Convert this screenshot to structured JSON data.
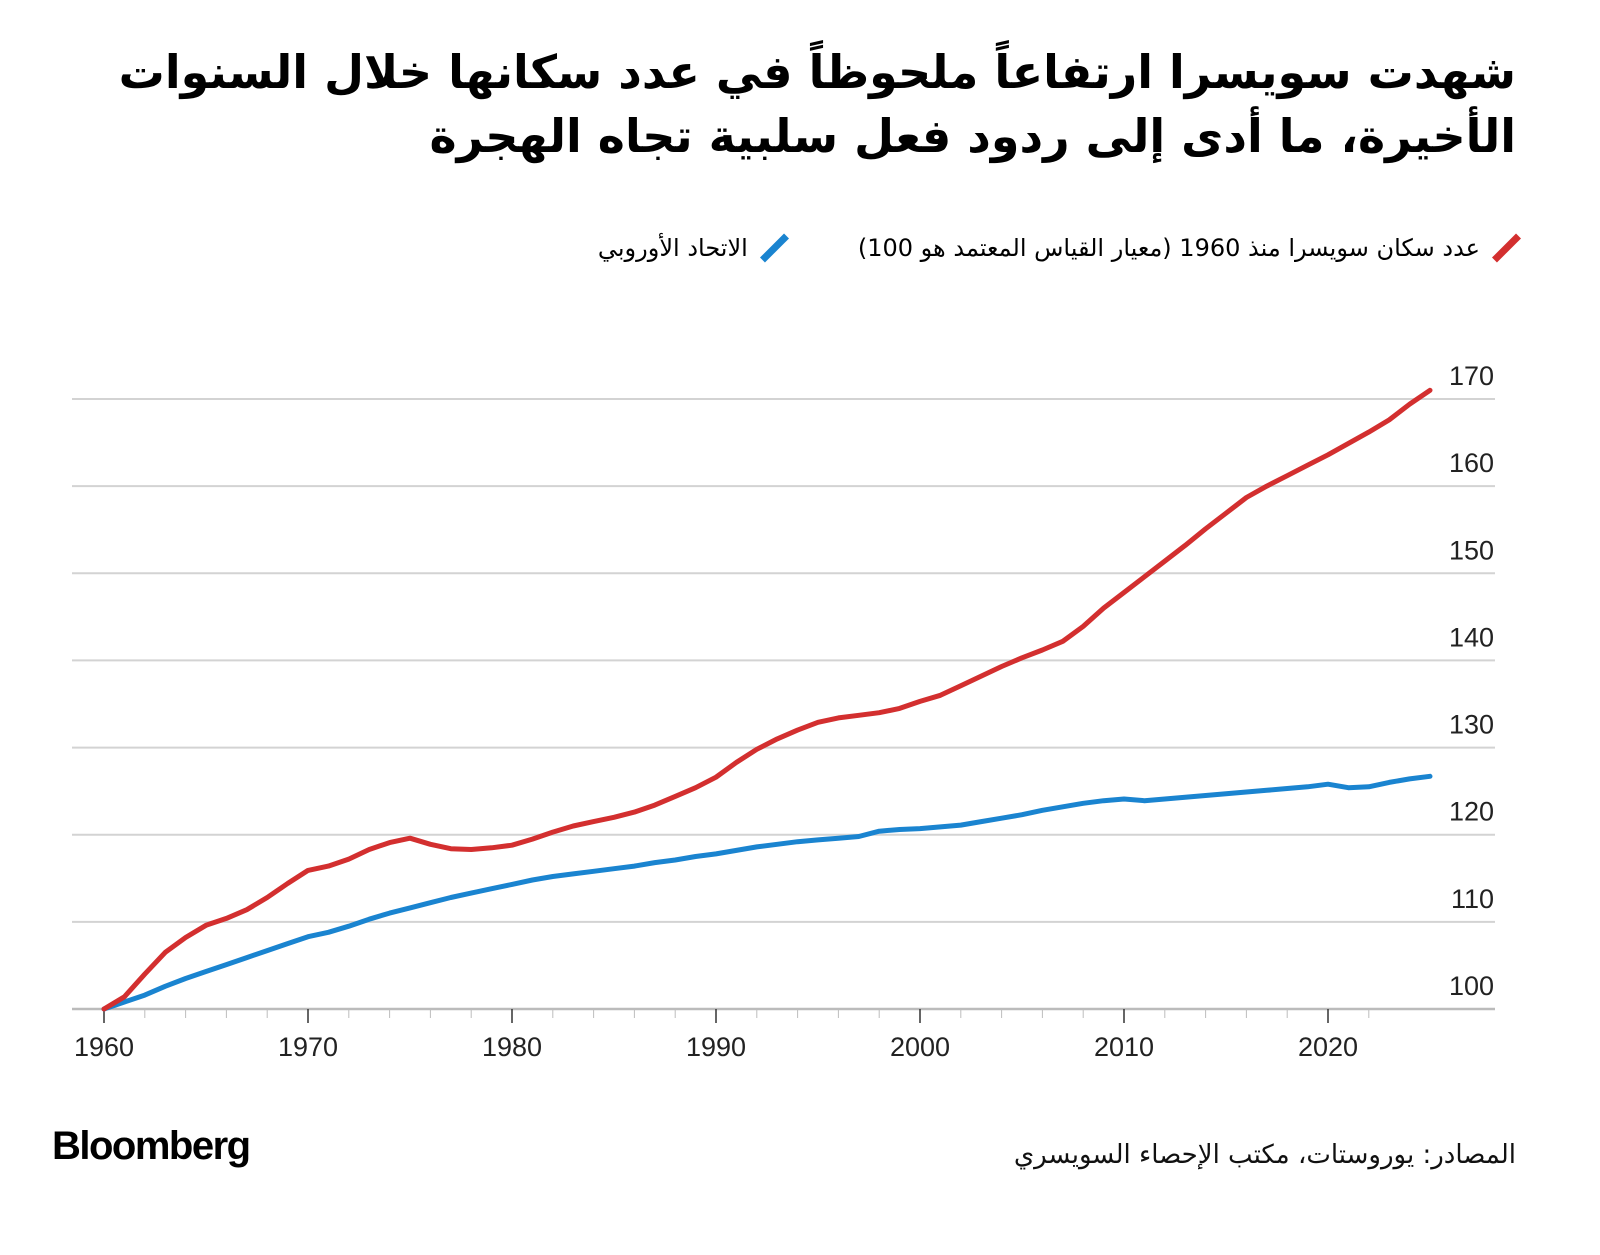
{
  "header": {
    "title_line1": "شهدت سويسرا ارتفاعاً ملحوظاً في عدد سكانها خلال السنوات",
    "title_line2": "الأخيرة، ما أدى إلى ردود فعل سلبية تجاه الهجرة"
  },
  "legend": [
    {
      "label": "عدد سكان سويسرا منذ 1960 (معيار القياس المعتمد هو 100)",
      "color": "#d32f2f",
      "icon": "slash-swatch-icon"
    },
    {
      "label": "الاتحاد الأوروبي",
      "color": "#1a84d0",
      "icon": "slash-swatch-icon"
    }
  ],
  "footer": {
    "brand": "Bloomberg",
    "source": "المصادر: يوروستات، مكتب الإحصاء السويسري"
  },
  "chart_data": {
    "type": "line",
    "title": "شهدت سويسرا ارتفاعاً ملحوظاً في عدد سكانها خلال السنوات الأخيرة، ما أدى إلى ردود فعل سلبية تجاه الهجرة",
    "xlabel": "",
    "ylabel": "",
    "xlim": [
      1960,
      2025
    ],
    "ylim": [
      100,
      170
    ],
    "x_ticks": [
      1960,
      1970,
      1980,
      1990,
      2000,
      2010,
      2020
    ],
    "x_tick_labels": [
      "1960",
      "1970",
      "1980",
      "1990",
      "2000",
      "2010",
      "2020"
    ],
    "y_ticks": [
      100,
      110,
      120,
      130,
      140,
      150,
      160,
      170
    ],
    "y_tick_labels": [
      "100",
      "110",
      "120",
      "130",
      "140",
      "150",
      "160",
      "170"
    ],
    "y_axis_side": "right",
    "grid": true,
    "legend_position": "top-right",
    "series": [
      {
        "name": "عدد سكان سويسرا منذ 1960 (معيار القياس المعتمد هو 100)",
        "color": "#d32f2f",
        "x": [
          1960,
          1961,
          1962,
          1963,
          1964,
          1965,
          1966,
          1967,
          1968,
          1969,
          1970,
          1971,
          1972,
          1973,
          1974,
          1975,
          1976,
          1977,
          1978,
          1979,
          1980,
          1981,
          1982,
          1983,
          1984,
          1985,
          1986,
          1987,
          1988,
          1989,
          1990,
          1991,
          1992,
          1993,
          1994,
          1995,
          1996,
          1997,
          1998,
          1999,
          2000,
          2001,
          2002,
          2003,
          2004,
          2005,
          2006,
          2007,
          2008,
          2009,
          2010,
          2011,
          2012,
          2013,
          2014,
          2015,
          2016,
          2017,
          2018,
          2019,
          2020,
          2021,
          2022,
          2023,
          2024,
          2025
        ],
        "values": [
          100,
          101.4,
          104,
          106.5,
          108.2,
          109.6,
          110.4,
          111.4,
          112.8,
          114.4,
          115.9,
          116.4,
          117.2,
          118.3,
          119.1,
          119.6,
          118.9,
          118.4,
          118.3,
          118.5,
          118.8,
          119.5,
          120.3,
          121,
          121.5,
          122,
          122.6,
          123.4,
          124.4,
          125.4,
          126.6,
          128.3,
          129.8,
          131,
          132,
          132.9,
          133.4,
          133.7,
          134,
          134.5,
          135.3,
          136,
          137.1,
          138.2,
          139.3,
          140.3,
          141.2,
          142.2,
          143.9,
          146,
          147.8,
          149.6,
          151.4,
          153.2,
          155.1,
          156.9,
          158.7,
          160,
          161.2,
          162.4,
          163.6,
          164.9,
          166.2,
          167.6,
          169.4,
          171
        ]
      },
      {
        "name": "الاتحاد الأوروبي",
        "color": "#1a84d0",
        "x": [
          1960,
          1961,
          1962,
          1963,
          1964,
          1965,
          1966,
          1967,
          1968,
          1969,
          1970,
          1971,
          1972,
          1973,
          1974,
          1975,
          1976,
          1977,
          1978,
          1979,
          1980,
          1981,
          1982,
          1983,
          1984,
          1985,
          1986,
          1987,
          1988,
          1989,
          1990,
          1991,
          1992,
          1993,
          1994,
          1995,
          1996,
          1997,
          1998,
          1999,
          2000,
          2001,
          2002,
          2003,
          2004,
          2005,
          2006,
          2007,
          2008,
          2009,
          2010,
          2011,
          2012,
          2013,
          2014,
          2015,
          2016,
          2017,
          2018,
          2019,
          2020,
          2021,
          2022,
          2023,
          2024,
          2025
        ],
        "values": [
          100,
          100.8,
          101.6,
          102.6,
          103.5,
          104.3,
          105.1,
          105.9,
          106.7,
          107.5,
          108.3,
          108.8,
          109.5,
          110.3,
          111,
          111.6,
          112.2,
          112.8,
          113.3,
          113.8,
          114.3,
          114.8,
          115.2,
          115.5,
          115.8,
          116.1,
          116.4,
          116.8,
          117.1,
          117.5,
          117.8,
          118.2,
          118.6,
          118.9,
          119.2,
          119.4,
          119.6,
          119.8,
          120.4,
          120.6,
          120.7,
          120.9,
          121.1,
          121.5,
          121.9,
          122.3,
          122.8,
          123.2,
          123.6,
          123.9,
          124.1,
          123.9,
          124.1,
          124.3,
          124.5,
          124.7,
          124.9,
          125.1,
          125.3,
          125.5,
          125.8,
          125.4,
          125.5,
          126,
          126.4,
          126.7
        ]
      }
    ]
  }
}
